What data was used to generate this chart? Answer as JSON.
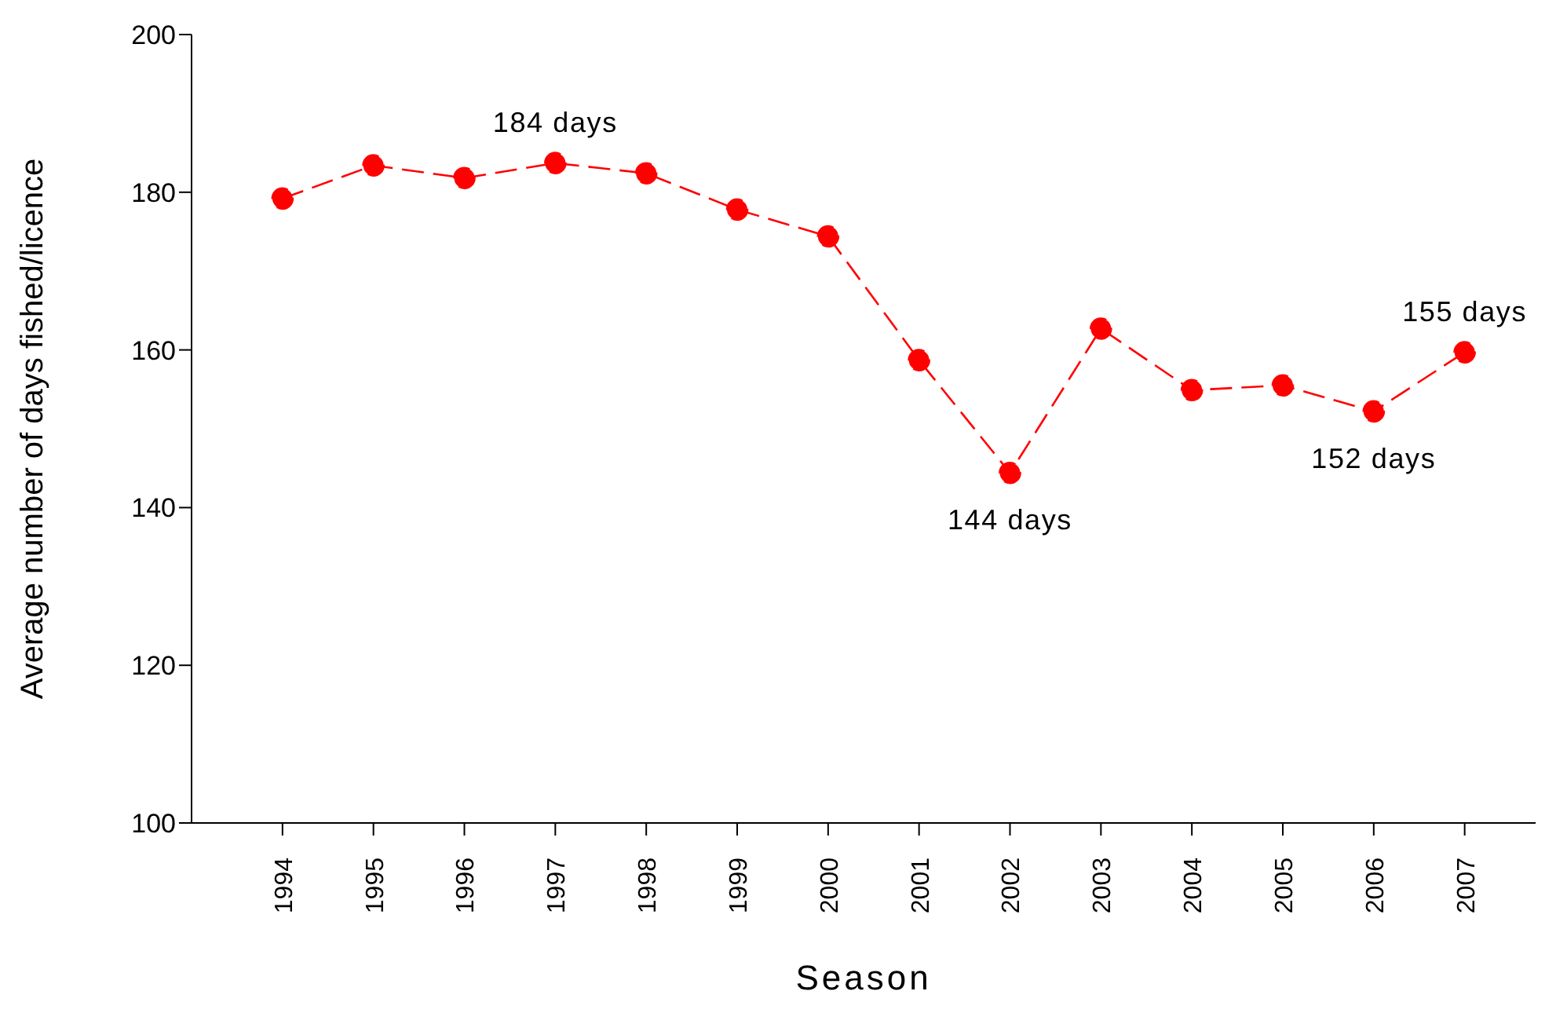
{
  "chart_data": {
    "type": "line",
    "xlabel": "Season",
    "ylabel": "Average number of days fished/licence",
    "categories": [
      "1994",
      "1995",
      "1996",
      "1997",
      "1998",
      "1999",
      "2000",
      "2001",
      "2002",
      "2003",
      "2004",
      "2005",
      "2006",
      "2007"
    ],
    "series": [
      {
        "color": "#ff0000",
        "values": [
          179.2,
          183.4,
          181.8,
          183.7,
          182.4,
          177.8,
          174.4,
          158.7,
          144.4,
          162.7,
          154.9,
          155.5,
          152.2,
          159.7
        ]
      }
    ],
    "ylim": [
      100,
      200
    ],
    "yticks": [
      100,
      120,
      140,
      160,
      180,
      200
    ],
    "grid": false,
    "legend": false,
    "marker": "circle",
    "line_style": "dashed",
    "annotations": [
      {
        "text": "184 days",
        "x": "1997",
        "y": 183.7
      },
      {
        "text": "144 days",
        "x": "2002",
        "y": 144.4
      },
      {
        "text": "152 days",
        "x": "2006",
        "y": 152.2
      },
      {
        "text": "155 days",
        "x": "2007",
        "y": 159.7
      }
    ]
  }
}
